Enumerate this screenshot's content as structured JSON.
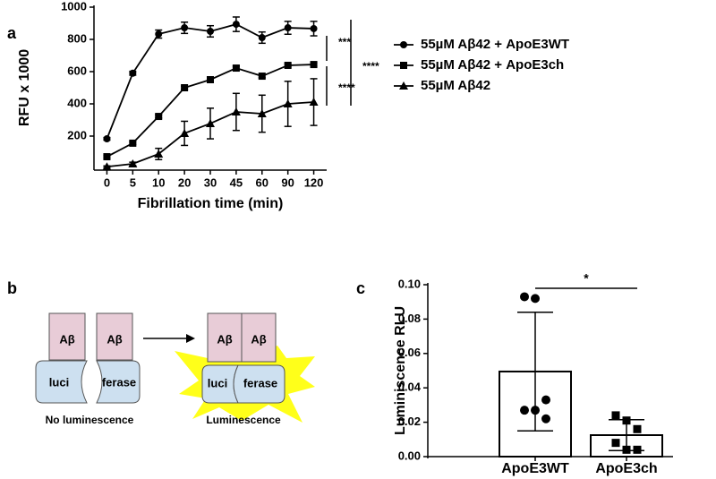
{
  "chart_data": [
    {
      "type": "line",
      "label": "a",
      "ylabel": "RFU x 1000",
      "xlabel": "Fibrillation time (min)",
      "categories": [
        "0",
        "5",
        "10",
        "20",
        "30",
        "45",
        "60",
        "90",
        "120"
      ],
      "ylim": [
        0,
        1000
      ],
      "yticks": [
        200,
        400,
        600,
        800,
        1000
      ],
      "series": [
        {
          "name": "55µM Aβ42 + ApoE3WT",
          "color": "#000000",
          "marker": "circle",
          "values": [
            183,
            590,
            833,
            872,
            850,
            894,
            811,
            872,
            867
          ],
          "errors": [
            8,
            12,
            25,
            35,
            35,
            45,
            35,
            40,
            45
          ]
        },
        {
          "name": "55µM Aβ42 + ApoE3ch",
          "color": "#000000",
          "marker": "square",
          "values": [
            72,
            156,
            322,
            500,
            550,
            622,
            572,
            639,
            644
          ],
          "errors": [
            8,
            8,
            10,
            10,
            10,
            12,
            10,
            10,
            10
          ]
        },
        {
          "name": "55µM Aβ42",
          "color": "#000000",
          "marker": "triangle",
          "values": [
            10,
            28,
            89,
            217,
            278,
            350,
            339,
            400,
            411
          ],
          "errors": [
            5,
            10,
            35,
            75,
            95,
            115,
            115,
            140,
            145
          ]
        }
      ],
      "annotations": [
        "***",
        "****",
        "****"
      ]
    },
    {
      "type": "bar",
      "label": "c",
      "ylabel": "Luminiscence RLU",
      "categories": [
        "ApoE3WT",
        "ApoE3ch"
      ],
      "values": [
        0.0495,
        0.0125
      ],
      "errors": [
        0.0345,
        0.009
      ],
      "points": [
        [
          0.093,
          0.092,
          0.033,
          0.027,
          0.027,
          0.022
        ],
        [
          0.024,
          0.021,
          0.016,
          0.008,
          0.004,
          0.004
        ]
      ],
      "color": "#ffffff",
      "ylim": [
        0,
        0.1
      ],
      "yticks": [
        {
          "value": 0,
          "label": "0.00"
        },
        {
          "value": 0.02,
          "label": "0.02"
        },
        {
          "value": 0.04,
          "label": "0.04"
        },
        {
          "value": 0.06,
          "label": "0.06"
        },
        {
          "value": 0.08,
          "label": "0.08"
        },
        {
          "value": 0.1,
          "label": "0.10"
        }
      ],
      "annotations": [
        "*"
      ]
    }
  ],
  "diagram": {
    "label": "b",
    "left": {
      "blocks": [
        "Aβ",
        "Aβ"
      ],
      "parts": [
        "luci",
        "ferase"
      ],
      "caption": "No luminescence"
    },
    "right": {
      "blocks": [
        "Aβ",
        "Aβ"
      ],
      "parts": [
        "luci",
        "ferase"
      ],
      "caption": "Luminescence"
    }
  }
}
